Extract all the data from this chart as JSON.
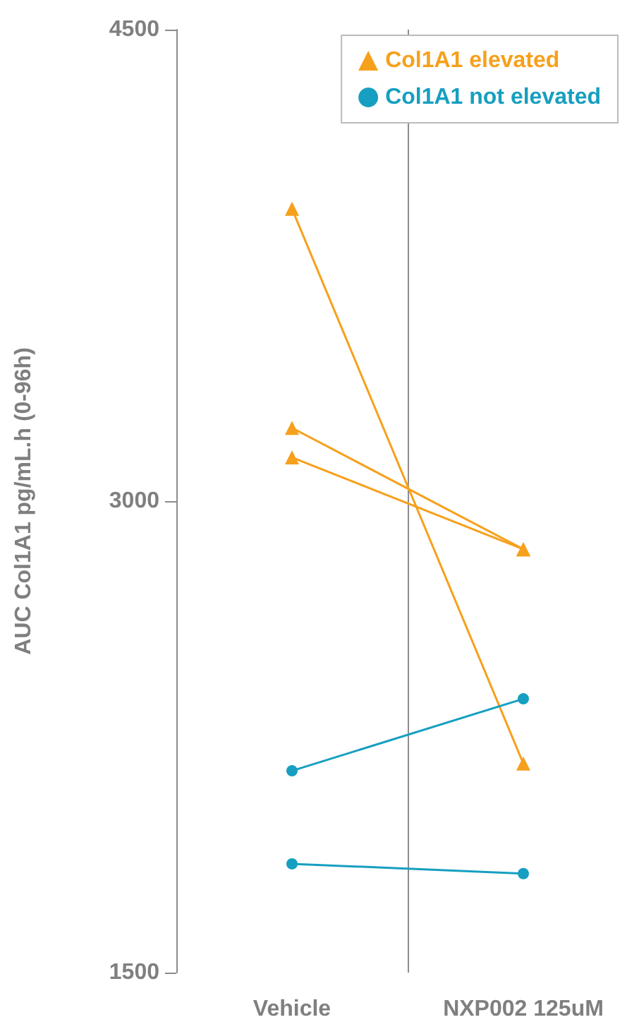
{
  "chart_data": {
    "type": "line",
    "ylabel": "AUC Col1A1 pg/mL.h (0-96h)",
    "categories": [
      "Vehicle",
      "NXP002 125uM"
    ],
    "ylim": [
      1500,
      4500
    ],
    "yticks": [
      1500,
      3000,
      4500
    ],
    "grid": "x",
    "legend": "top right",
    "series": [
      {
        "name": "Col1A1 elevated",
        "color": "#f7a01c",
        "marker": "triangle",
        "values": [
          3930,
          2165
        ]
      },
      {
        "color": "#f7a01c",
        "marker": "triangle",
        "values": [
          3233,
          2847
        ]
      },
      {
        "color": "#f7a01c",
        "marker": "triangle",
        "values": [
          3139,
          2847
        ]
      },
      {
        "name": "Col1A1 not elevated",
        "color": "#169fc0",
        "marker": "circle",
        "values": [
          2142,
          2371
        ]
      },
      {
        "color": "#169fc0",
        "marker": "circle",
        "values": [
          1846,
          1815
        ]
      }
    ]
  }
}
